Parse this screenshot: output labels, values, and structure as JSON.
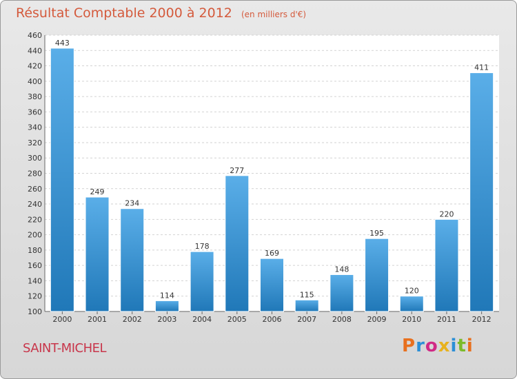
{
  "header": {
    "title": "Résultat Comptable 2000 à 2012",
    "subtitle": "(en milliers d'€)"
  },
  "footer": {
    "commune": "SAINT-MICHEL",
    "brand": "Proxiti"
  },
  "colors": {
    "title": "#d45a3c",
    "commune": "#c8354a",
    "bar_light": "#5aaee8",
    "bar_dark": "#2078b8",
    "brand_letters": [
      "#e8701e",
      "#2c8fd6",
      "#d02a86",
      "#e8b21e",
      "#2c8fd6",
      "#7cbb2a",
      "#e8701e"
    ]
  },
  "chart_data": {
    "type": "bar",
    "title": "Résultat Comptable 2000 à 2012",
    "categories": [
      "2000",
      "2001",
      "2002",
      "2003",
      "2004",
      "2005",
      "2006",
      "2007",
      "2008",
      "2009",
      "2010",
      "2011",
      "2012"
    ],
    "values": [
      443,
      249,
      234,
      114,
      178,
      277,
      169,
      115,
      148,
      195,
      120,
      220,
      411
    ],
    "ylim": [
      100,
      460
    ],
    "yticks": [
      100,
      120,
      140,
      160,
      180,
      200,
      220,
      240,
      260,
      280,
      300,
      320,
      340,
      360,
      380,
      400,
      420,
      440,
      460
    ],
    "xlabel": "",
    "ylabel": "",
    "grid": true,
    "data_labels": true
  }
}
